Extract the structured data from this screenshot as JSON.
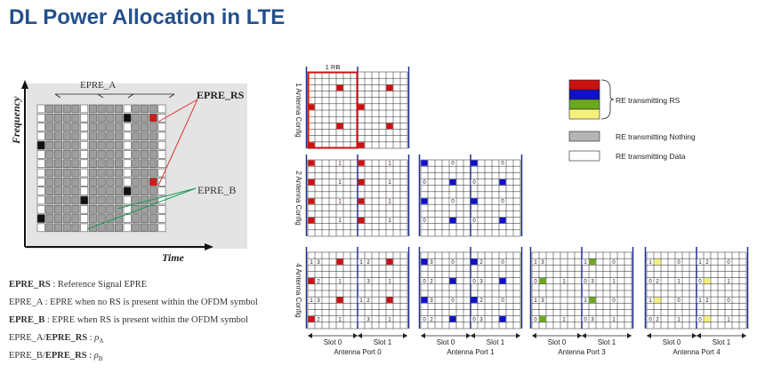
{
  "title": "DL Power Allocation in LTE",
  "left_diagram": {
    "epre_a": "EPRE_A",
    "epre_rs": "EPRE_RS",
    "epre_b": "EPRE_B",
    "y_axis": "Frequency",
    "x_axis": "Time"
  },
  "definitions": [
    {
      "term": "EPRE_RS",
      "desc": " : Reference Signal EPRE"
    },
    {
      "term": "EPRE_A",
      "desc": " : EPRE when no RS is present within the OFDM symbol"
    },
    {
      "term": "EPRE_B",
      "desc": " : EPRE when RS is present within the OFDM symbol"
    }
  ],
  "ratios": [
    {
      "num": "EPRE_A",
      "den": "EPRE_RS",
      "rho": "ρ",
      "sub": "A"
    },
    {
      "num": "EPRE_B",
      "den": "EPRE_RS",
      "rho": "ρ",
      "sub": "B"
    }
  ],
  "rb_label": "1 RB",
  "row_labels": [
    "1 Antenna Config",
    "2 Antenna Config",
    "4 Antenna Config"
  ],
  "slot_labels": [
    "Slot 0",
    "Slot 1"
  ],
  "port_labels": [
    "Antenna Port 0",
    "Antenna Port 1",
    "Antenna Port 3",
    "Antenna Port 4"
  ],
  "legend": {
    "rs": "RE transmitting RS",
    "nothing": "RE transmitting Nothing",
    "data": "RE transmitting Data"
  },
  "colors": {
    "title": "#24508c",
    "frame": "#1f2f8f",
    "port0_rs": "#cc1111",
    "port1_rs": "#1010cc",
    "port3_rs": "#6aaa1a",
    "port4_rs": "#f5f07a",
    "grey_re": "#b5b5b5"
  }
}
